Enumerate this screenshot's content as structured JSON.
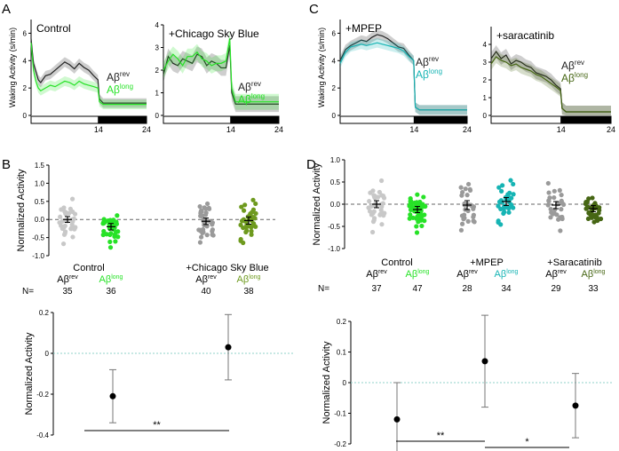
{
  "panel_letters": [
    "A",
    "B",
    "C",
    "D"
  ],
  "colors": {
    "rev_dark": "#222222",
    "rev_grey": "#9a9a9a",
    "rev_light": "#c8c8c8",
    "bright_green": "#27e227",
    "olive_green": "#6e9a1e",
    "teal": "#16b4b4",
    "dark_olive": "#466614",
    "reference_line": "#8fd1c9"
  },
  "chart_data": [
    {
      "id": "A1",
      "type": "line",
      "title": "Control",
      "ylabel": "Waking Activity (s/min)",
      "ylim": [
        0,
        7
      ],
      "yticks": [
        0,
        2,
        4,
        6
      ],
      "xlim": [
        0,
        24
      ],
      "xticks": [
        14,
        24
      ],
      "light_dark_bar": [
        {
          "state": "light",
          "from": 0,
          "to": 14
        },
        {
          "state": "dark",
          "from": 14,
          "to": 24
        }
      ],
      "legend": [
        {
          "name": "Aβ",
          "sup": "rev"
        },
        {
          "name": "Aβ",
          "sup": "long"
        }
      ],
      "series": [
        {
          "name": "Aβrev",
          "x": [
            0,
            0.5,
            1,
            1.5,
            2,
            3,
            4,
            5,
            6,
            7,
            8,
            9,
            10,
            11,
            12,
            13,
            13.9,
            14.2,
            15,
            16,
            18,
            20,
            22,
            24
          ],
          "y": [
            5.6,
            3.8,
            3.2,
            2.6,
            2.4,
            2.9,
            3.0,
            3.3,
            3.6,
            3.9,
            3.7,
            3.4,
            3.8,
            3.5,
            3.3,
            2.9,
            2.6,
            1.2,
            0.9,
            0.9,
            0.9,
            0.9,
            0.9,
            0.9
          ]
        },
        {
          "name": "Aβlong",
          "x": [
            0,
            0.5,
            1,
            1.5,
            2,
            3,
            4,
            5,
            6,
            7,
            8,
            9,
            10,
            11,
            12,
            13,
            13.9,
            14.2,
            15,
            16,
            18,
            20,
            22,
            24
          ],
          "y": [
            5.3,
            3.3,
            2.5,
            2.0,
            1.8,
            2.0,
            2.2,
            2.1,
            2.3,
            2.5,
            2.4,
            2.2,
            2.5,
            2.3,
            2.2,
            2.1,
            2.0,
            1.0,
            0.8,
            0.8,
            0.8,
            0.8,
            0.8,
            0.8
          ]
        }
      ]
    },
    {
      "id": "A2",
      "type": "line",
      "title": "+Chicago Sky Blue",
      "ylim": [
        0,
        4
      ],
      "yticks": [
        0,
        1,
        2,
        3,
        4
      ],
      "xlim": [
        0,
        24
      ],
      "xticks": [
        14,
        24
      ],
      "light_dark_bar": [
        {
          "state": "light",
          "from": 0,
          "to": 14
        },
        {
          "state": "dark",
          "from": 14,
          "to": 24
        }
      ],
      "legend": [
        {
          "name": "Aβ",
          "sup": "rev"
        },
        {
          "name": "Aβ",
          "sup": "long"
        }
      ],
      "series": [
        {
          "name": "Aβrev",
          "x": [
            0,
            1,
            2,
            3,
            4,
            5,
            6,
            7,
            8,
            9,
            10,
            11,
            12,
            13,
            13.8,
            14.2,
            15,
            16,
            18,
            20,
            22,
            24
          ],
          "y": [
            1.8,
            2.6,
            2.3,
            2.2,
            2.5,
            2.4,
            2.3,
            2.7,
            2.6,
            2.2,
            2.4,
            2.3,
            2.1,
            2.1,
            3.1,
            1.0,
            0.5,
            0.5,
            0.5,
            0.5,
            0.5,
            0.5
          ]
        },
        {
          "name": "Aβlong",
          "x": [
            0,
            1,
            2,
            3,
            4,
            5,
            6,
            7,
            8,
            9,
            10,
            11,
            12,
            13,
            13.8,
            14.2,
            15,
            16,
            18,
            20,
            22,
            24
          ],
          "y": [
            2.0,
            2.4,
            2.7,
            2.5,
            2.2,
            2.6,
            2.6,
            2.8,
            2.5,
            2.4,
            2.2,
            2.3,
            2.3,
            2.4,
            3.4,
            1.2,
            0.6,
            0.6,
            0.6,
            0.6,
            0.6,
            0.6
          ]
        }
      ]
    },
    {
      "id": "C1",
      "type": "line",
      "title": "+MPEP",
      "ylabel": "Waking Activity (s/min)",
      "ylim": [
        0,
        7
      ],
      "yticks": [
        0,
        2,
        4,
        6
      ],
      "xlim": [
        0,
        24
      ],
      "xticks": [
        14,
        24
      ],
      "light_dark_bar": [
        {
          "state": "light",
          "from": 0,
          "to": 14
        },
        {
          "state": "dark",
          "from": 14,
          "to": 24
        }
      ],
      "legend": [
        {
          "name": "Aβ",
          "sup": "rev"
        },
        {
          "name": "Aβ",
          "sup": "long"
        }
      ],
      "series": [
        {
          "name": "Aβrev",
          "x": [
            0,
            1,
            2,
            3,
            4,
            5,
            6,
            7,
            8,
            9,
            10,
            11,
            12,
            13,
            13.9,
            14.2,
            15,
            16,
            18,
            20,
            22,
            24
          ],
          "y": [
            4.0,
            4.8,
            5.1,
            5.3,
            5.5,
            5.4,
            5.7,
            5.9,
            5.8,
            5.6,
            5.3,
            5.0,
            4.9,
            4.4,
            4.0,
            0.6,
            0.4,
            0.4,
            0.4,
            0.4,
            0.4,
            0.4
          ]
        },
        {
          "name": "Aβlong",
          "x": [
            0,
            1,
            2,
            3,
            4,
            5,
            6,
            7,
            8,
            9,
            10,
            11,
            12,
            13,
            13.9,
            14.2,
            15,
            16,
            18,
            20,
            22,
            24
          ],
          "y": [
            3.8,
            4.6,
            5.0,
            5.1,
            5.2,
            5.1,
            5.2,
            5.3,
            5.2,
            5.1,
            5.0,
            4.9,
            4.7,
            4.3,
            4.0,
            0.6,
            0.4,
            0.4,
            0.4,
            0.4,
            0.4,
            0.4
          ]
        }
      ]
    },
    {
      "id": "C2",
      "type": "line",
      "title": "+saracatinib",
      "ylim": [
        0,
        5
      ],
      "yticks": [
        0,
        1,
        2,
        3,
        4
      ],
      "xlim": [
        0,
        24
      ],
      "xticks": [
        14,
        24
      ],
      "light_dark_bar": [
        {
          "state": "light",
          "from": 0,
          "to": 14
        },
        {
          "state": "dark",
          "from": 14,
          "to": 24
        }
      ],
      "legend": [
        {
          "name": "Aβ",
          "sup": "rev"
        },
        {
          "name": "Aβ",
          "sup": "long"
        }
      ],
      "series": [
        {
          "name": "Aβrev",
          "x": [
            0,
            1,
            2,
            3,
            4,
            5,
            6,
            7,
            8,
            9,
            10,
            11,
            12,
            13,
            13.9,
            14.2,
            15,
            16,
            18,
            20,
            22,
            24
          ],
          "y": [
            3.2,
            3.6,
            3.2,
            3.4,
            2.9,
            3.1,
            3.0,
            2.8,
            2.7,
            2.4,
            2.3,
            2.2,
            2.0,
            1.7,
            1.5,
            0.4,
            0.2,
            0.2,
            0.2,
            0.2,
            0.2,
            0.2
          ]
        },
        {
          "name": "Aβlong",
          "x": [
            0,
            1,
            2,
            3,
            4,
            5,
            6,
            7,
            8,
            9,
            10,
            11,
            12,
            13,
            13.9,
            14.2,
            15,
            16,
            18,
            20,
            22,
            24
          ],
          "y": [
            2.9,
            3.3,
            3.1,
            3.0,
            2.8,
            2.9,
            2.7,
            2.6,
            2.5,
            2.3,
            2.2,
            2.0,
            1.8,
            1.6,
            1.4,
            0.4,
            0.2,
            0.2,
            0.2,
            0.2,
            0.2,
            0.2
          ]
        }
      ]
    },
    {
      "id": "B-top",
      "type": "scatter",
      "ylabel": "Normalized Activity",
      "ylim": [
        -1.0,
        1.5
      ],
      "yticks": [
        -1.0,
        -0.5,
        0,
        0.5,
        1.0,
        1.5
      ],
      "groups": [
        {
          "label": "Control",
          "items": [
            {
              "name": "Aβ",
              "sup": "rev",
              "n": 35,
              "mean": 0.0,
              "sem": 0.08,
              "spread": 0.32
            },
            {
              "name": "Aβ",
              "sup": "long",
              "n": 36,
              "mean": -0.2,
              "sem": 0.09,
              "spread": 0.33
            }
          ]
        },
        {
          "label": "+Chicago Sky Blue",
          "items": [
            {
              "name": "Aβ",
              "sup": "rev",
              "n": 40,
              "mean": -0.05,
              "sem": 0.09,
              "spread": 0.35
            },
            {
              "name": "Aβ",
              "sup": "long",
              "n": 38,
              "mean": -0.03,
              "sem": 0.1,
              "spread": 0.38
            }
          ]
        }
      ]
    },
    {
      "id": "B-bottom",
      "type": "scatter",
      "ylabel": "Normalized Activity",
      "ylim": [
        -0.4,
        0.2
      ],
      "yticks": [
        -0.4,
        -0.2,
        0,
        0.2
      ],
      "points": [
        {
          "mean": -0.21,
          "lower": -0.34,
          "upper": -0.08
        },
        {
          "mean": 0.03,
          "lower": -0.13,
          "upper": 0.19
        }
      ],
      "significance": [
        {
          "label": "**"
        }
      ]
    },
    {
      "id": "D-top",
      "type": "scatter",
      "ylabel": "Normalized Activity",
      "ylim": [
        -1.0,
        1.0
      ],
      "yticks": [
        -1.0,
        -0.5,
        0,
        0.5,
        1.0
      ],
      "groups": [
        {
          "label": "Control",
          "items": [
            {
              "name": "Aβ",
              "sup": "rev",
              "n": 37,
              "mean": 0.0,
              "sem": 0.08,
              "spread": 0.3
            },
            {
              "name": "Aβ",
              "sup": "long",
              "n": 47,
              "mean": -0.12,
              "sem": 0.07,
              "spread": 0.3
            }
          ]
        },
        {
          "label": "+MPEP",
          "items": [
            {
              "name": "Aβ",
              "sup": "rev",
              "n": 28,
              "mean": -0.02,
              "sem": 0.1,
              "spread": 0.34
            },
            {
              "name": "Aβ",
              "sup": "long",
              "n": 34,
              "mean": 0.06,
              "sem": 0.09,
              "spread": 0.32
            }
          ]
        },
        {
          "label": "+Saracatinib",
          "items": [
            {
              "name": "Aβ",
              "sup": "rev",
              "n": 29,
              "mean": -0.02,
              "sem": 0.08,
              "spread": 0.28
            },
            {
              "name": "Aβ",
              "sup": "long",
              "n": 33,
              "mean": -0.1,
              "sem": 0.07,
              "spread": 0.24
            }
          ]
        }
      ]
    },
    {
      "id": "D-bottom",
      "type": "scatter",
      "ylabel": "Normalized Activity",
      "ylim": [
        -0.2,
        0.2
      ],
      "yticks": [
        -0.2,
        -0.1,
        0,
        0.1,
        0.2
      ],
      "points": [
        {
          "mean": -0.12,
          "lower": -0.23,
          "upper": 0.0
        },
        {
          "mean": 0.07,
          "lower": -0.08,
          "upper": 0.22
        },
        {
          "mean": -0.075,
          "lower": -0.18,
          "upper": 0.03
        }
      ],
      "significance": [
        {
          "label": "**"
        },
        {
          "label": "*"
        }
      ]
    }
  ],
  "labels": {
    "n_prefix": "N="
  }
}
